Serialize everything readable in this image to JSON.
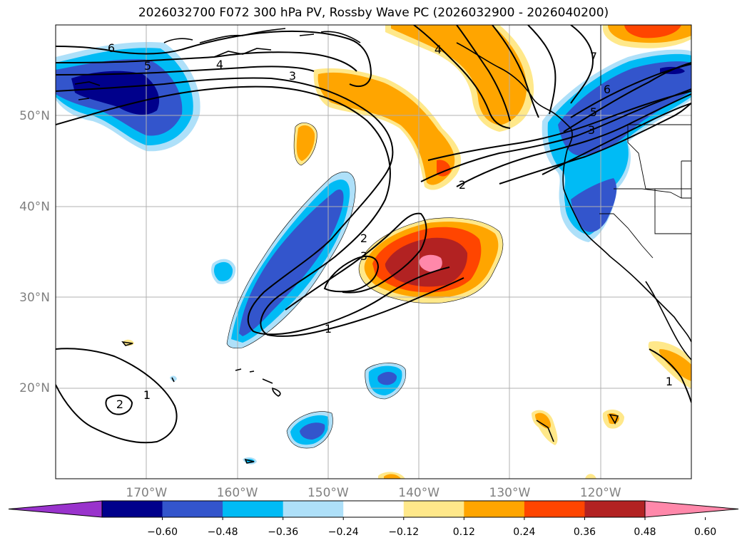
{
  "title": "2026032700 F072 300 hPa PV, Rossby Wave PC (2026032900 - 2026040200)",
  "axes": {
    "lat_ticks": [
      {
        "value": 50,
        "label": "50°N"
      },
      {
        "value": 40,
        "label": "40°N"
      },
      {
        "value": 30,
        "label": "30°N"
      },
      {
        "value": 20,
        "label": "20°N"
      }
    ],
    "lon_ticks": [
      {
        "value": -170,
        "label": "170°W"
      },
      {
        "value": -160,
        "label": "160°W"
      },
      {
        "value": -150,
        "label": "150°W"
      },
      {
        "value": -140,
        "label": "140°W"
      },
      {
        "value": -130,
        "label": "130°W"
      },
      {
        "value": -120,
        "label": "120°W"
      }
    ]
  },
  "colorbar": {
    "labels": [
      "−0.60",
      "−0.48",
      "−0.36",
      "−0.24",
      "−0.12",
      "0.12",
      "0.24",
      "0.36",
      "0.48",
      "0.60"
    ],
    "colors": [
      "#9933cc",
      "#00008b",
      "#3355cc",
      "#00bbf5",
      "#aee0f9",
      "#ffffff",
      "#ffe88a",
      "#ffa500",
      "#ff4500",
      "#b22222",
      "#ff88aa"
    ]
  },
  "contour_labels": [
    {
      "text": "6",
      "value": 6
    },
    {
      "text": "5",
      "value": 5
    },
    {
      "text": "4",
      "value": 4
    },
    {
      "text": "3",
      "value": 3
    },
    {
      "text": "4",
      "value": 4
    },
    {
      "text": "7",
      "value": 7
    },
    {
      "text": "6",
      "value": 6
    },
    {
      "text": "5",
      "value": 5
    },
    {
      "text": "3",
      "value": 3
    },
    {
      "text": "2",
      "value": 2
    },
    {
      "text": "2",
      "value": 2
    },
    {
      "text": "3",
      "value": 3
    },
    {
      "text": "1",
      "value": 1
    },
    {
      "text": "1",
      "value": 1
    },
    {
      "text": "2",
      "value": 2
    },
    {
      "text": "1",
      "value": 1
    }
  ],
  "colors": {
    "deep_negative": "#00008b",
    "mid_negative": "#3355cc",
    "light_negative": "#00bbf5",
    "pale_negative": "#aee0f9",
    "pale_positive": "#ffe88a",
    "light_positive": "#ffa500",
    "mid_positive": "#ff4500",
    "deep_positive": "#b22222",
    "max_positive": "#ff88aa",
    "grid": "#b0b0b0"
  }
}
